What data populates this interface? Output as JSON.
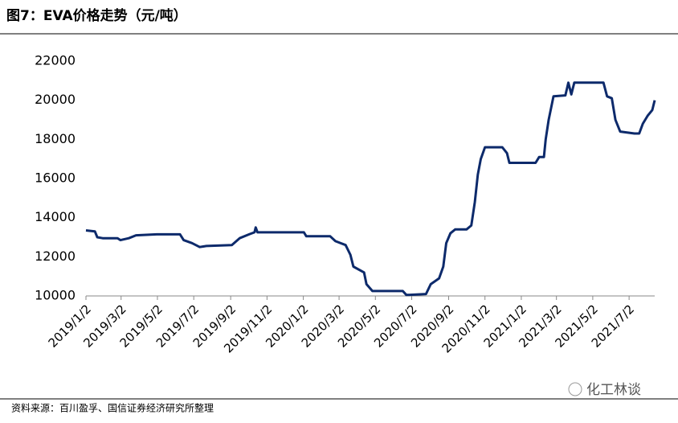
{
  "chart_data": {
    "type": "line",
    "title": "图7：EVA价格走势（元/吨）",
    "source": "资料来源：百川盈孚、国信证券经济研究所整理",
    "watermark": "化工林谈",
    "x": [
      "2019/1/2",
      "2019/1/17",
      "2019/1/21",
      "2019/1/30",
      "2019/2/24",
      "2019/3/1",
      "2019/3/15",
      "2019/3/27",
      "2019/5/1",
      "2019/6/9",
      "2019/6/15",
      "2019/6/29",
      "2019/7/12",
      "2019/7/23",
      "2019/9/4",
      "2019/9/17",
      "2019/10/3",
      "2019/10/12",
      "2019/10/14",
      "2019/10/17",
      "2020/1/3",
      "2020/1/7",
      "2020/2/16",
      "2020/2/25",
      "2020/3/13",
      "2020/3/21",
      "2020/3/26",
      "2020/4/13",
      "2020/4/17",
      "2020/4/27",
      "2020/6/17",
      "2020/6/23",
      "2020/7/26",
      "2020/8/3",
      "2020/8/17",
      "2020/8/24",
      "2020/8/29",
      "2020/9/5",
      "2020/9/13",
      "2020/10/2",
      "2020/10/10",
      "2020/10/16",
      "2020/10/21",
      "2020/10/26",
      "2020/11/2",
      "2020/12/1",
      "2020/12/9",
      "2020/12/13",
      "2021/1/26",
      "2021/2/1",
      "2021/2/9",
      "2021/2/12",
      "2021/2/17",
      "2021/2/25",
      "2021/3/17",
      "2021/3/22",
      "2021/3/27",
      "2021/4/1",
      "2021/5/20",
      "2021/5/26",
      "2021/6/3",
      "2021/6/9",
      "2021/6/17",
      "2021/7/11",
      "2021/7/19",
      "2021/7/25",
      "2021/8/2",
      "2021/8/10",
      "2021/8/14"
    ],
    "series": [
      {
        "name": "EVA",
        "color": "#0d2a6b",
        "values": [
          13350,
          13300,
          13000,
          12950,
          12950,
          12850,
          12950,
          13100,
          13150,
          13150,
          12850,
          12700,
          12500,
          12550,
          12600,
          12950,
          13150,
          13250,
          13500,
          13250,
          13250,
          13050,
          13050,
          12800,
          12600,
          12100,
          11500,
          11200,
          10600,
          10250,
          10250,
          10050,
          10100,
          10600,
          10900,
          11500,
          12700,
          13200,
          13400,
          13400,
          13600,
          14800,
          16200,
          17000,
          17600,
          17600,
          17300,
          16800,
          16800,
          17100,
          17100,
          18000,
          19000,
          20200,
          20250,
          20900,
          20300,
          20900,
          20900,
          20200,
          20100,
          19000,
          18400,
          18300,
          18300,
          18800,
          19200,
          19500,
          20000
        ]
      }
    ],
    "xlim": [
      "2019/1/2",
      "2021/8/14"
    ],
    "xticks": [
      "2019/1/2",
      "2019/3/2",
      "2019/5/2",
      "2019/7/2",
      "2019/9/2",
      "2019/11/2",
      "2020/1/2",
      "2020/3/2",
      "2020/5/2",
      "2020/7/2",
      "2020/9/2",
      "2020/11/2",
      "2021/1/2",
      "2021/3/2",
      "2021/5/2",
      "2021/7/2"
    ],
    "ylim": [
      10000,
      22000
    ],
    "yticks": [
      10000,
      12000,
      14000,
      16000,
      18000,
      20000,
      22000
    ],
    "grid": false
  }
}
